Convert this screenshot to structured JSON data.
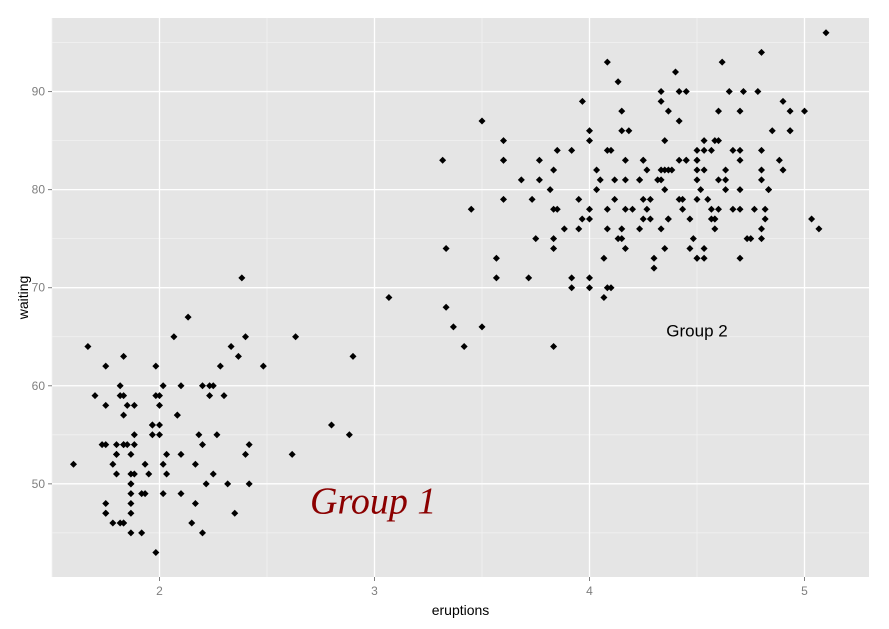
{
  "chart_data": {
    "type": "scatter",
    "xlabel": "eruptions",
    "ylabel": "waiting",
    "xlim": [
      1.5,
      5.3
    ],
    "ylim": [
      40.5,
      97.5
    ],
    "x_ticks": [
      "2",
      "3",
      "4",
      "5"
    ],
    "y_ticks": [
      "50",
      "60",
      "70",
      "80",
      "90"
    ],
    "grid": true,
    "panel_color": "#e5e5e5",
    "grid_color": "#ffffff",
    "point_color": "#000000",
    "annotations": [
      {
        "text": "Group 1",
        "x": 2.7,
        "y": 47,
        "color": "#8b0000",
        "style": "serif-italic"
      },
      {
        "text": "Group 2",
        "x": 4.5,
        "y": 65,
        "color": "#000000",
        "style": "sans"
      }
    ],
    "x": [
      3.6,
      1.8,
      3.333,
      2.283,
      4.533,
      2.883,
      4.7,
      3.6,
      1.95,
      4.35,
      1.833,
      3.917,
      4.2,
      1.75,
      4.7,
      2.167,
      1.75,
      4.8,
      1.6,
      4.25,
      1.8,
      1.75,
      3.45,
      3.067,
      4.533,
      3.6,
      1.967,
      4.083,
      3.85,
      4.433,
      4.3,
      4.467,
      3.367,
      4.033,
      3.833,
      2.017,
      1.867,
      4.833,
      1.833,
      4.783,
      4.35,
      1.883,
      4.567,
      1.75,
      4.533,
      3.317,
      3.833,
      2.1,
      4.633,
      2,
      4.8,
      4.716,
      1.833,
      4.833,
      1.733,
      4.883,
      3.717,
      1.667,
      4.567,
      4.317,
      2.233,
      4.5,
      1.75,
      4.8,
      1.817,
      4.4,
      4.167,
      4.7,
      2.067,
      4.7,
      4.033,
      1.967,
      4.5,
      4,
      1.983,
      5.067,
      2.017,
      4.567,
      3.883,
      3.6,
      4.133,
      4.333,
      4.1,
      2.633,
      4.067,
      4.933,
      3.95,
      4.517,
      2.167,
      4,
      2.2,
      4.333,
      1.867,
      4.817,
      1.833,
      4.3,
      4.667,
      3.75,
      1.867,
      4.9,
      2.483,
      4.367,
      2.1,
      4.5,
      4.05,
      1.867,
      4.7,
      1.783,
      4.85,
      3.683,
      4.733,
      2.3,
      4.9,
      4.417,
      1.7,
      4.633,
      2.317,
      4.6,
      1.817,
      4.417,
      2.617,
      4.067,
      4.25,
      1.967,
      4.6,
      3.767,
      1.917,
      4.5,
      2.267,
      4.65,
      1.867,
      4.167,
      2.8,
      4.333,
      1.833,
      4.383,
      1.883,
      4.933,
      2.033,
      3.733,
      4.233,
      2.233,
      4.533,
      4.817,
      4.333,
      1.983,
      4.633,
      2.017,
      5.1,
      1.8,
      5.033,
      4,
      2.4,
      4.6,
      3.567,
      4,
      4.5,
      4.083,
      1.8,
      3.967,
      2.2,
      4.15,
      2,
      3.833,
      3.5,
      4.583,
      2.367,
      5,
      1.933,
      4.617,
      1.917,
      2.083,
      4.583,
      3.333,
      4.167,
      4.333,
      4.5,
      2.417,
      4,
      4.167,
      1.883,
      4.583,
      4.25,
      3.767,
      2.033,
      4.433,
      4.083,
      1.833,
      4.417,
      2.183,
      4.8,
      1.833,
      4.8,
      4.1,
      3.966,
      4.233,
      3.5,
      4.366,
      2.25,
      4.667,
      2.1,
      4.35,
      4.133,
      1.867,
      4.6,
      1.783,
      4.367,
      3.85,
      1.933,
      4.5,
      2.383,
      4.7,
      1.867,
      3.833,
      3.417,
      4.233,
      2.4,
      4.8,
      2,
      4.15,
      1.867,
      4.267,
      1.75,
      4.483,
      4,
      4.117,
      4.083,
      4.267,
      3.917,
      4.55,
      4.083,
      2.417,
      4.183,
      2.217,
      4.45,
      1.883,
      1.85,
      4.283,
      3.95,
      2.333,
      4.15,
      2.35,
      4.933,
      2.9,
      4.583,
      3.833,
      2.083,
      4.367,
      2.133,
      4.35,
      2.2,
      4.45,
      3.567,
      4.5,
      4.15,
      3.817,
      3.917,
      4.45,
      2,
      4.283,
      4.767,
      4.533,
      1.85,
      4.25,
      1.983,
      2.25,
      4.75,
      4.117,
      2.15,
      4.417,
      1.817,
      4.467
    ],
    "y": [
      79,
      54,
      74,
      62,
      85,
      55,
      88,
      85,
      51,
      85,
      54,
      84,
      78,
      47,
      83,
      52,
      62,
      84,
      52,
      79,
      51,
      47,
      78,
      69,
      74,
      83,
      55,
      76,
      78,
      79,
      73,
      77,
      66,
      80,
      74,
      52,
      48,
      80,
      59,
      90,
      80,
      58,
      84,
      58,
      73,
      83,
      64,
      53,
      82,
      59,
      75,
      90,
      54,
      80,
      54,
      83,
      71,
      64,
      77,
      81,
      59,
      84,
      48,
      82,
      60,
      92,
      78,
      78,
      65,
      73,
      82,
      56,
      79,
      71,
      62,
      76,
      60,
      78,
      76,
      83,
      75,
      82,
      70,
      65,
      73,
      88,
      76,
      80,
      48,
      86,
      60,
      90,
      50,
      78,
      63,
      72,
      84,
      75,
      51,
      82,
      62,
      88,
      49,
      83,
      81,
      47,
      84,
      52,
      86,
      81,
      75,
      59,
      89,
      79,
      59,
      81,
      50,
      85,
      59,
      87,
      53,
      69,
      77,
      56,
      88,
      81,
      45,
      82,
      55,
      90,
      45,
      83,
      56,
      89,
      46,
      82,
      51,
      86,
      53,
      79,
      81,
      60,
      82,
      77,
      76,
      59,
      80,
      49,
      96,
      53,
      77,
      77,
      65,
      81,
      71,
      70,
      81,
      93,
      53,
      89,
      45,
      86,
      58,
      78,
      66,
      76,
      63,
      88,
      52,
      93,
      49,
      57,
      77,
      68,
      81,
      81,
      73,
      50,
      85,
      74,
      55,
      77,
      83,
      83,
      51,
      78,
      84,
      46,
      83,
      55,
      81,
      57,
      76,
      84,
      77,
      81,
      87,
      77,
      51,
      78,
      60,
      82,
      91,
      53,
      78,
      46,
      77,
      84,
      49,
      83,
      71,
      80,
      49,
      75,
      64,
      76,
      53,
      94,
      55,
      76,
      50,
      82,
      54,
      75,
      78,
      79,
      78,
      78,
      70,
      79,
      70,
      54,
      86,
      50,
      90,
      54,
      54,
      77,
      79,
      64,
      75,
      47,
      86,
      63,
      85,
      82,
      57,
      82,
      67,
      74,
      54,
      83,
      73,
      73,
      88,
      80,
      71,
      83,
      56,
      79,
      78,
      84,
      58,
      83,
      43,
      60,
      75,
      81,
      46,
      90,
      46,
      74
    ]
  }
}
